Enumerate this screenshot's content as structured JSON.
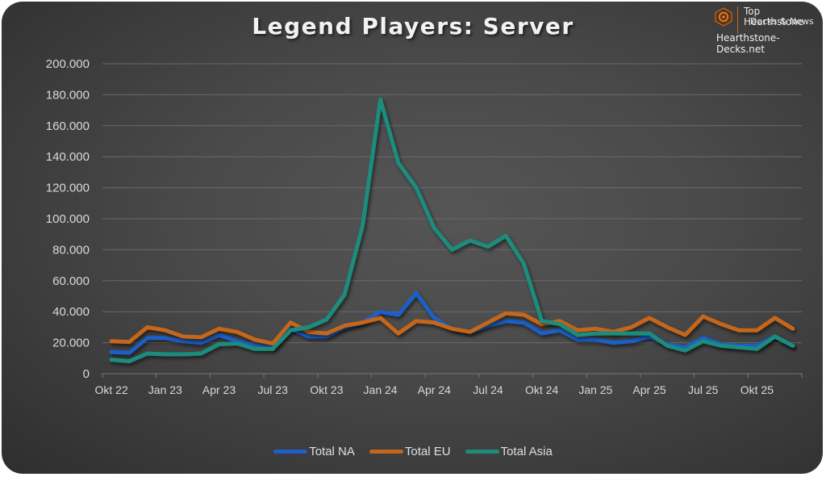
{
  "title": "Legend Players: Server",
  "brand": {
    "line1": "Top Hearthstone",
    "line2": "Decks & News",
    "url": "Hearthstone-Decks.net",
    "accent": "#c86a1e"
  },
  "colors": {
    "na": "#1f5fc8",
    "eu": "#c4661c",
    "asia": "#1e8c7c",
    "background": "#4a4a4a",
    "gridline": "#6a6a6a"
  },
  "legend": [
    {
      "label": "Total NA",
      "color": "#1f5fc8"
    },
    {
      "label": "Total EU",
      "color": "#c4661c"
    },
    {
      "label": "Total Asia",
      "color": "#1e8c7c"
    }
  ],
  "chart_data": {
    "type": "line",
    "title": "Legend Players: Server",
    "xlabel": "",
    "ylabel": "",
    "ylim": [
      0,
      200000
    ],
    "yticks": [
      "0",
      "20.000",
      "40.000",
      "60.000",
      "80.000",
      "100.000",
      "120.000",
      "140.000",
      "160.000",
      "180.000",
      "200.000"
    ],
    "xtick_labels": [
      "Okt 22",
      "Jan 23",
      "Apr 23",
      "Jul 23",
      "Okt 23",
      "Jan 24",
      "Apr 24",
      "Jul 24",
      "Okt 24",
      "Jan 25",
      "Apr 25",
      "Jul 25",
      "Okt 25"
    ],
    "grid": true,
    "legend_position": "bottom",
    "x": [
      "Okt 22",
      "Nov 22",
      "Dez 22",
      "Jan 23",
      "Feb 23",
      "Mär 23",
      "Apr 23",
      "Mai 23",
      "Jun 23",
      "Jul 23",
      "Aug 23",
      "Sep 23",
      "Okt 23",
      "Nov 23",
      "Dez 23",
      "Jan 24",
      "Feb 24",
      "Mär 24",
      "Apr 24",
      "Mai 24",
      "Jun 24",
      "Jul 24",
      "Aug 24",
      "Sep 24",
      "Okt 24",
      "Nov 24",
      "Dez 24",
      "Jan 25",
      "Feb 25",
      "Mär 25",
      "Apr 25",
      "Mai 25",
      "Jun 25",
      "Jul 25",
      "Aug 25",
      "Sep 25",
      "Okt 25",
      "Nov 25",
      "Dez 25"
    ],
    "series": [
      {
        "name": "Total NA",
        "color": "#1f5fc8",
        "values": [
          14000,
          13500,
          23000,
          23000,
          21000,
          20000,
          25000,
          21000,
          18000,
          17000,
          29000,
          24000,
          24000,
          30000,
          33000,
          40000,
          38000,
          52000,
          36000,
          29000,
          27000,
          31000,
          34000,
          33000,
          26000,
          28000,
          22000,
          22000,
          20000,
          21000,
          24000,
          19000,
          17000,
          23000,
          19000,
          18000,
          18000,
          24000,
          18000
        ]
      },
      {
        "name": "Total EU",
        "color": "#c4661c",
        "values": [
          21000,
          20500,
          30000,
          28000,
          24000,
          23500,
          29000,
          27000,
          22000,
          19500,
          33000,
          27000,
          26000,
          31000,
          33000,
          36000,
          26000,
          34000,
          33000,
          29000,
          27000,
          33000,
          39000,
          38000,
          32000,
          34000,
          28000,
          29000,
          27000,
          30000,
          36000,
          30000,
          25000,
          37000,
          32000,
          28000,
          28000,
          36000,
          29000
        ]
      },
      {
        "name": "Total Asia",
        "color": "#1e8c7c",
        "values": [
          9000,
          8000,
          13000,
          12500,
          12500,
          13000,
          19000,
          19500,
          16000,
          16000,
          28000,
          30000,
          35000,
          51000,
          95000,
          177000,
          136000,
          120000,
          94000,
          80000,
          86000,
          82000,
          89000,
          71000,
          34000,
          32000,
          25000,
          26000,
          26000,
          26000,
          26000,
          18000,
          15000,
          21000,
          18000,
          17000,
          16000,
          24000,
          18000
        ]
      }
    ]
  }
}
